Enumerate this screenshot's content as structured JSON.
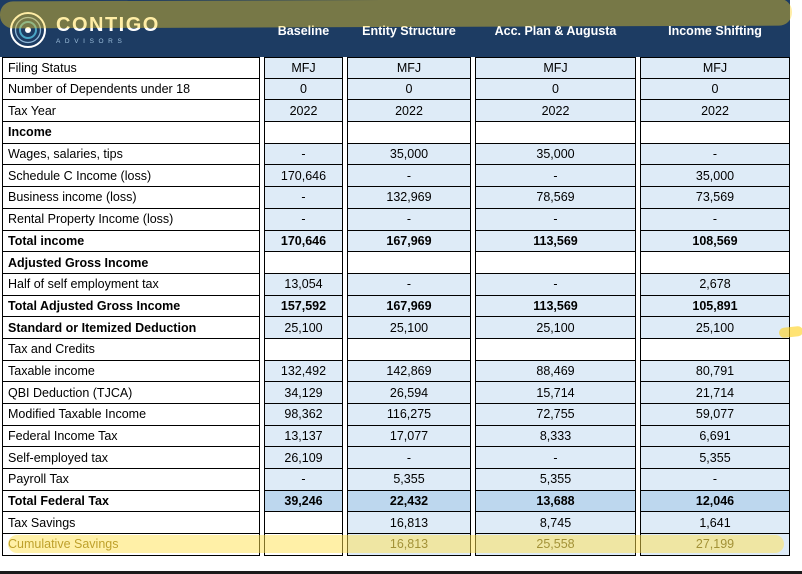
{
  "brand": {
    "name": "CONTIGO",
    "subtitle": "ADVISORS"
  },
  "colors": {
    "header_navy": "#1d3c63",
    "cell_blue": "#DEEBF7",
    "total_blue": "#BDD7EE",
    "highlight_yellow": "#FFD21E",
    "border_black": "#000000"
  },
  "annotations": {
    "highlighted_row": "Cumulative Savings",
    "stray_mark_near_row": "Standard or Itemized Deduction"
  },
  "chart_data": {
    "type": "table",
    "title": "Tax scenario comparison",
    "columns": [
      "Baseline",
      "Entity Structure",
      "Acc. Plan & Augusta",
      "Income Shifting"
    ],
    "rows": [
      {
        "label": "Filing Status",
        "style": "normal",
        "values": [
          "MFJ",
          "MFJ",
          "MFJ",
          "MFJ"
        ]
      },
      {
        "label": "Number of Dependents under 18",
        "style": "normal",
        "values": [
          "0",
          "0",
          "0",
          "0"
        ]
      },
      {
        "label": "Tax Year",
        "style": "normal",
        "values": [
          "2022",
          "2022",
          "2022",
          "2022"
        ]
      },
      {
        "label": "Income",
        "style": "section",
        "values": [
          "",
          "",
          "",
          ""
        ]
      },
      {
        "label": "Wages, salaries, tips",
        "style": "normal",
        "values": [
          "-",
          "35,000",
          "35,000",
          "-"
        ]
      },
      {
        "label": "Schedule C Income (loss)",
        "style": "normal",
        "values": [
          "170,646",
          "-",
          "-",
          "35,000"
        ]
      },
      {
        "label": "Business income (loss)",
        "style": "normal",
        "values": [
          "-",
          "132,969",
          "78,569",
          "73,569"
        ]
      },
      {
        "label": "Rental Property Income (loss)",
        "style": "normal",
        "values": [
          "-",
          "-",
          "-",
          "-"
        ]
      },
      {
        "label": "Total income",
        "style": "total",
        "values": [
          "170,646",
          "167,969",
          "113,569",
          "108,569"
        ]
      },
      {
        "label": "Adjusted Gross Income",
        "style": "section",
        "values": [
          "",
          "",
          "",
          ""
        ]
      },
      {
        "label": "Half of self employment tax",
        "style": "normal",
        "values": [
          "13,054",
          "-",
          "-",
          "2,678"
        ]
      },
      {
        "label": "Total Adjusted Gross Income",
        "style": "total",
        "values": [
          "157,592",
          "167,969",
          "113,569",
          "105,891"
        ]
      },
      {
        "label": "Standard or Itemized Deduction",
        "style": "bold_label",
        "values": [
          "25,100",
          "25,100",
          "25,100",
          "25,100"
        ]
      },
      {
        "label": "Tax and Credits",
        "style": "section_plain",
        "values": [
          "",
          "",
          "",
          ""
        ]
      },
      {
        "label": "Taxable income",
        "style": "normal",
        "values": [
          "132,492",
          "142,869",
          "88,469",
          "80,791"
        ]
      },
      {
        "label": "QBI Deduction (TJCA)",
        "style": "normal",
        "values": [
          "34,129",
          "26,594",
          "15,714",
          "21,714"
        ]
      },
      {
        "label": "Modified Taxable Income",
        "style": "normal",
        "values": [
          "98,362",
          "116,275",
          "72,755",
          "59,077"
        ]
      },
      {
        "label": "Federal Income Tax",
        "style": "normal",
        "values": [
          "13,137",
          "17,077",
          "8,333",
          "6,691"
        ]
      },
      {
        "label": "Self-employed tax",
        "style": "normal",
        "values": [
          "26,109",
          "-",
          "-",
          "5,355"
        ]
      },
      {
        "label": "Payroll Tax",
        "style": "normal",
        "values": [
          "-",
          "5,355",
          "5,355",
          "-"
        ]
      },
      {
        "label": "Total Federal Tax",
        "style": "grand",
        "values": [
          "39,246",
          "22,432",
          "13,688",
          "12,046"
        ]
      },
      {
        "label": "Tax Savings",
        "style": "normal",
        "values": [
          "",
          "16,813",
          "8,745",
          "1,641"
        ]
      },
      {
        "label": "Cumulative Savings",
        "style": "cumulative",
        "values": [
          "",
          "16,813",
          "25,558",
          "27,199"
        ]
      }
    ]
  }
}
